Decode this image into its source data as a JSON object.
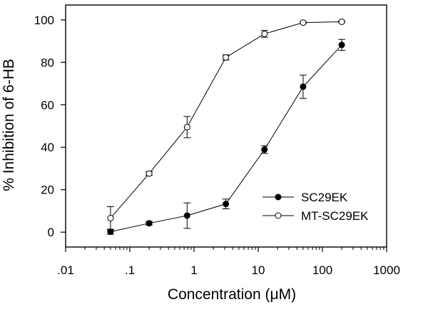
{
  "chart_data": {
    "type": "line",
    "title": "",
    "xlabel": "Concentration (μM)",
    "ylabel": "% Inhibition of 6-HB",
    "xscale": "log",
    "xlim": [
      0.01,
      1000
    ],
    "ylim": [
      -7,
      107
    ],
    "x_ticks": [
      0.01,
      0.1,
      1,
      10,
      100,
      1000
    ],
    "x_tick_labels": [
      ".01",
      ".1",
      "1",
      "10",
      "100",
      "1000"
    ],
    "y_ticks": [
      0,
      20,
      40,
      60,
      80,
      100
    ],
    "y_tick_labels": [
      "0",
      "20",
      "40",
      "60",
      "80",
      "100"
    ],
    "grid": false,
    "legend_position": "lower-right",
    "series": [
      {
        "name": "SC29EK",
        "marker": "filled-circle",
        "x": [
          0.05,
          0.2,
          0.78,
          3.13,
          12.5,
          50,
          200
        ],
        "values": [
          0.2,
          4.2,
          7.8,
          13.3,
          38.9,
          68.5,
          88.2
        ],
        "errors": [
          1.2,
          0.9,
          6.0,
          2.3,
          1.8,
          5.5,
          2.6
        ]
      },
      {
        "name": "MT-SC29EK",
        "marker": "open-circle",
        "x": [
          0.05,
          0.2,
          0.78,
          3.13,
          12.5,
          50,
          200
        ],
        "values": [
          6.6,
          27.6,
          49.5,
          82.3,
          93.4,
          98.7,
          99.1
        ],
        "errors": [
          5.4,
          0.9,
          5.0,
          1.2,
          1.6,
          0.4,
          0.4
        ]
      }
    ]
  }
}
